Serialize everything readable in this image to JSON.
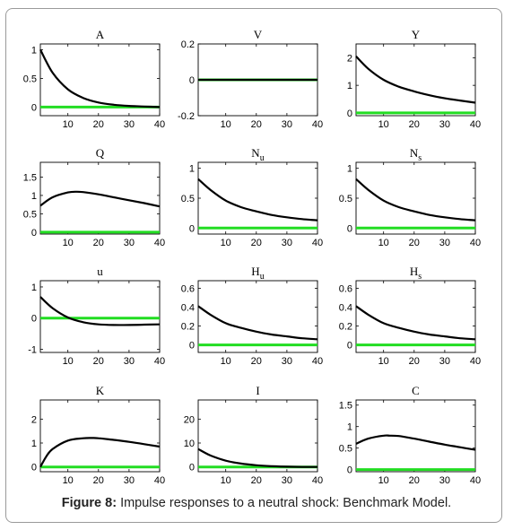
{
  "caption": {
    "label": "Figure 8:",
    "text": "Impulse responses to a neutral shock: Benchmark Model."
  },
  "colors": {
    "benchmark_line": "#000000",
    "zero_line": "#22dd22"
  },
  "chart_data": [
    {
      "type": "line",
      "title": "A",
      "title_sub": "",
      "xlim": [
        1,
        40
      ],
      "ylim": [
        -0.15,
        1.1
      ],
      "xticks": [
        10,
        20,
        30,
        40
      ],
      "yticks": [
        0,
        0.5,
        1
      ],
      "series": [
        {
          "x": [
            1,
            5,
            10,
            15,
            20,
            25,
            30,
            35,
            40
          ],
          "values": [
            1.0,
            0.6,
            0.31,
            0.16,
            0.08,
            0.04,
            0.02,
            0.01,
            0.0
          ]
        },
        {
          "x": [
            1,
            40
          ],
          "values": [
            0,
            0
          ]
        }
      ]
    },
    {
      "type": "line",
      "title": "V",
      "title_sub": "",
      "xlim": [
        1,
        40
      ],
      "ylim": [
        -0.2,
        0.2
      ],
      "xticks": [
        10,
        20,
        30,
        40
      ],
      "yticks": [
        -0.2,
        0,
        0.2
      ],
      "series": [
        {
          "x": [
            1,
            40
          ],
          "values": [
            0,
            0
          ]
        },
        {
          "x": [
            1,
            40
          ],
          "values": [
            0,
            0
          ]
        }
      ]
    },
    {
      "type": "line",
      "title": "Y",
      "title_sub": "",
      "xlim": [
        1,
        40
      ],
      "ylim": [
        -0.1,
        2.5
      ],
      "xticks": [
        10,
        20,
        30,
        40
      ],
      "yticks": [
        0,
        1,
        2
      ],
      "series": [
        {
          "x": [
            1,
            5,
            10,
            15,
            20,
            25,
            30,
            35,
            40
          ],
          "values": [
            2.05,
            1.6,
            1.2,
            0.95,
            0.78,
            0.64,
            0.53,
            0.45,
            0.37
          ]
        },
        {
          "x": [
            1,
            40
          ],
          "values": [
            0,
            0
          ]
        }
      ]
    },
    {
      "type": "line",
      "title": "Q",
      "title_sub": "",
      "xlim": [
        1,
        40
      ],
      "ylim": [
        -0.05,
        1.9
      ],
      "xticks": [
        10,
        20,
        30,
        40
      ],
      "yticks": [
        0,
        0.5,
        1,
        1.5
      ],
      "series": [
        {
          "x": [
            1,
            5,
            10,
            13,
            15,
            20,
            25,
            30,
            35,
            40
          ],
          "values": [
            0.72,
            0.95,
            1.08,
            1.1,
            1.09,
            1.03,
            0.95,
            0.87,
            0.79,
            0.7
          ]
        },
        {
          "x": [
            1,
            40
          ],
          "values": [
            0,
            0
          ]
        }
      ]
    },
    {
      "type": "line",
      "title": "N",
      "title_sub": "u",
      "xlim": [
        1,
        40
      ],
      "ylim": [
        -0.1,
        1.1
      ],
      "xticks": [
        10,
        20,
        30,
        40
      ],
      "yticks": [
        0,
        0.5,
        1
      ],
      "series": [
        {
          "x": [
            1,
            5,
            10,
            15,
            20,
            25,
            30,
            35,
            40
          ],
          "values": [
            0.82,
            0.64,
            0.46,
            0.35,
            0.28,
            0.22,
            0.18,
            0.15,
            0.13
          ]
        },
        {
          "x": [
            1,
            40
          ],
          "values": [
            0,
            0
          ]
        }
      ]
    },
    {
      "type": "line",
      "title": "N",
      "title_sub": "s",
      "xlim": [
        1,
        40
      ],
      "ylim": [
        -0.1,
        1.1
      ],
      "xticks": [
        10,
        20,
        30,
        40
      ],
      "yticks": [
        0,
        0.5,
        1
      ],
      "series": [
        {
          "x": [
            1,
            5,
            10,
            15,
            20,
            25,
            30,
            35,
            40
          ],
          "values": [
            0.82,
            0.64,
            0.46,
            0.35,
            0.28,
            0.22,
            0.18,
            0.15,
            0.13
          ]
        },
        {
          "x": [
            1,
            40
          ],
          "values": [
            0,
            0
          ]
        }
      ]
    },
    {
      "type": "line",
      "title": "u",
      "title_sub": "",
      "xlim": [
        1,
        40
      ],
      "ylim": [
        -1.1,
        1.2
      ],
      "xticks": [
        10,
        20,
        30,
        40
      ],
      "yticks": [
        -1,
        0,
        1
      ],
      "series": [
        {
          "x": [
            1,
            5,
            10,
            15,
            20,
            25,
            30,
            35,
            40
          ],
          "values": [
            0.68,
            0.32,
            0.02,
            -0.13,
            -0.2,
            -0.22,
            -0.22,
            -0.21,
            -0.2
          ]
        },
        {
          "x": [
            1,
            40
          ],
          "values": [
            0,
            0
          ]
        }
      ]
    },
    {
      "type": "line",
      "title": "H",
      "title_sub": "u",
      "xlim": [
        1,
        40
      ],
      "ylim": [
        -0.08,
        0.68
      ],
      "xticks": [
        10,
        20,
        30,
        40
      ],
      "yticks": [
        0,
        0.2,
        0.4,
        0.6
      ],
      "series": [
        {
          "x": [
            1,
            5,
            10,
            15,
            20,
            25,
            30,
            35,
            40
          ],
          "values": [
            0.41,
            0.32,
            0.23,
            0.18,
            0.14,
            0.11,
            0.09,
            0.07,
            0.06
          ]
        },
        {
          "x": [
            1,
            40
          ],
          "values": [
            0,
            0
          ]
        }
      ]
    },
    {
      "type": "line",
      "title": "H",
      "title_sub": "s",
      "xlim": [
        1,
        40
      ],
      "ylim": [
        -0.08,
        0.68
      ],
      "xticks": [
        10,
        20,
        30,
        40
      ],
      "yticks": [
        0,
        0.2,
        0.4,
        0.6
      ],
      "series": [
        {
          "x": [
            1,
            5,
            10,
            15,
            20,
            25,
            30,
            35,
            40
          ],
          "values": [
            0.41,
            0.32,
            0.23,
            0.18,
            0.14,
            0.11,
            0.09,
            0.07,
            0.06
          ]
        },
        {
          "x": [
            1,
            40
          ],
          "values": [
            0,
            0
          ]
        }
      ]
    },
    {
      "type": "line",
      "title": "K",
      "title_sub": "",
      "xlim": [
        1,
        40
      ],
      "ylim": [
        -0.2,
        2.8
      ],
      "xticks": [
        10,
        20,
        30,
        40
      ],
      "yticks": [
        0,
        1,
        2
      ],
      "series": [
        {
          "x": [
            1,
            3,
            5,
            10,
            15,
            18,
            20,
            25,
            30,
            35,
            40
          ],
          "values": [
            0.0,
            0.45,
            0.75,
            1.1,
            1.2,
            1.21,
            1.2,
            1.13,
            1.05,
            0.95,
            0.85
          ]
        },
        {
          "x": [
            1,
            40
          ],
          "values": [
            0,
            0
          ]
        }
      ]
    },
    {
      "type": "line",
      "title": "I",
      "title_sub": "",
      "xlim": [
        1,
        40
      ],
      "ylim": [
        -2,
        28
      ],
      "xticks": [
        10,
        20,
        30,
        40
      ],
      "yticks": [
        0,
        10,
        20
      ],
      "series": [
        {
          "x": [
            1,
            5,
            10,
            15,
            20,
            25,
            30,
            35,
            40
          ],
          "values": [
            7.5,
            4.8,
            2.6,
            1.4,
            0.7,
            0.3,
            0.1,
            0.0,
            0.0
          ]
        },
        {
          "x": [
            1,
            40
          ],
          "values": [
            0,
            0
          ]
        }
      ]
    },
    {
      "type": "line",
      "title": "C",
      "title_sub": "",
      "xlim": [
        1,
        40
      ],
      "ylim": [
        -0.05,
        1.62
      ],
      "xticks": [
        10,
        20,
        30,
        40
      ],
      "yticks": [
        0,
        0.5,
        1,
        1.5
      ],
      "series": [
        {
          "x": [
            1,
            5,
            10,
            12,
            15,
            20,
            25,
            30,
            35,
            40
          ],
          "values": [
            0.6,
            0.72,
            0.79,
            0.79,
            0.78,
            0.72,
            0.65,
            0.58,
            0.52,
            0.46
          ]
        },
        {
          "x": [
            1,
            40
          ],
          "values": [
            0,
            0
          ]
        }
      ]
    }
  ]
}
